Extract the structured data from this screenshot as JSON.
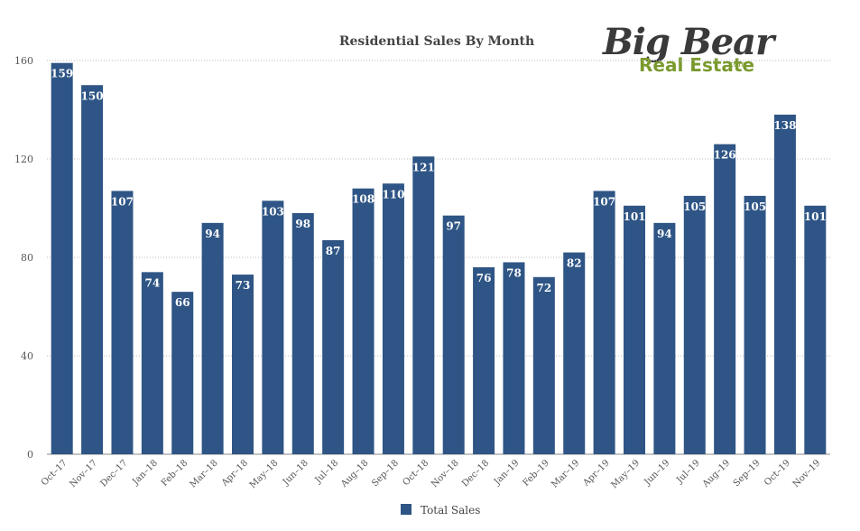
{
  "chart_data": {
    "type": "bar",
    "title": "Residential Sales By Month",
    "categories": [
      "Oct–17",
      "Nov–17",
      "Dec–17",
      "Jan–18",
      "Feb–18",
      "Mar–18",
      "Apr–18",
      "May–18",
      "Jun–18",
      "Jul–18",
      "Aug–18",
      "Sep–18",
      "Oct–18",
      "Nov–18",
      "Dec–18",
      "Jan–19",
      "Feb–19",
      "Mar–19",
      "Apr–19",
      "May–19",
      "Jun–19",
      "Jul–19",
      "Aug–19",
      "Sep–19",
      "Oct–19",
      "Nov–19"
    ],
    "series": [
      {
        "name": "Total Sales",
        "values": [
          159,
          150,
          107,
          74,
          66,
          94,
          73,
          103,
          98,
          87,
          108,
          110,
          121,
          97,
          76,
          78,
          72,
          82,
          107,
          101,
          94,
          105,
          126,
          105,
          138,
          101
        ]
      }
    ],
    "ylim": [
      0,
      160
    ],
    "yticks": [
      0,
      40,
      80,
      120,
      160
    ],
    "grid": true,
    "legend_position": "bottom-center",
    "bar_color": "#2e5585"
  },
  "logo": {
    "main": "Big Bear",
    "sub": "Real Estate",
    "domain": ".com",
    "color_dark": "#3a3a3a",
    "color_green": "#7a9a2e"
  }
}
